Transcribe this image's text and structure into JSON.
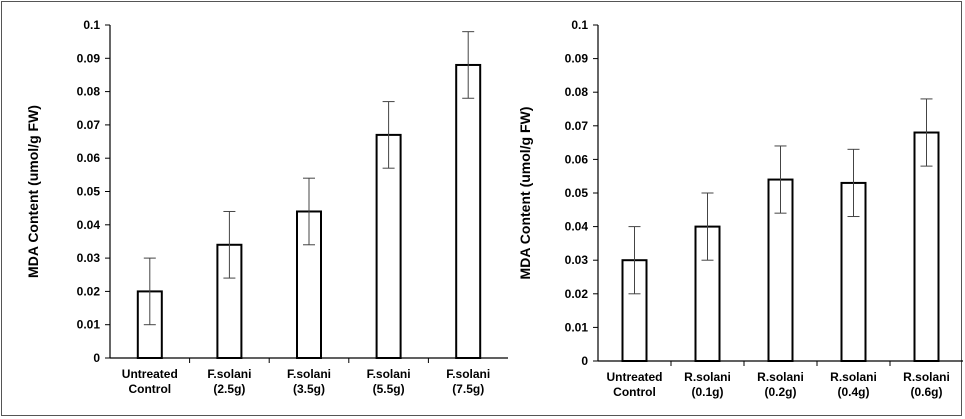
{
  "chart_data": [
    {
      "type": "bar",
      "ylabel": "MDA Content  (umol/g FW)",
      "ylim": [
        0,
        0.1
      ],
      "yticks": [
        "0",
        "0.01",
        "0.02",
        "0.03",
        "0.04",
        "0.05",
        "0.06",
        "0.07",
        "0.08",
        "0.09",
        "0.1"
      ],
      "categories": [
        [
          "Untreated",
          "Control"
        ],
        [
          "F.solani",
          "(2.5g)"
        ],
        [
          "F.solani",
          "(3.5g)"
        ],
        [
          "F.solani",
          "(5.5g)"
        ],
        [
          "F.solani",
          "(7.5g)"
        ]
      ],
      "values": [
        0.02,
        0.034,
        0.044,
        0.067,
        0.088
      ],
      "errors": [
        0.01,
        0.01,
        0.01,
        0.01,
        0.01
      ],
      "bar_color": "#ffffff",
      "edge_color": "#000000",
      "grid": false
    },
    {
      "type": "bar",
      "ylabel": "MDA Content  (umol/g FW)",
      "ylim": [
        0,
        0.1
      ],
      "yticks": [
        "0",
        "0.01",
        "0.02",
        "0.03",
        "0.04",
        "0.05",
        "0.06",
        "0.07",
        "0.08",
        "0.09",
        "0.1"
      ],
      "categories": [
        [
          "Untreated",
          "Control"
        ],
        [
          "R.solani",
          "(0.1g)"
        ],
        [
          "R.solani",
          "(0.2g)"
        ],
        [
          "R.solani",
          "(0.4g)"
        ],
        [
          "R.solani",
          "(0.6g)"
        ]
      ],
      "values": [
        0.03,
        0.04,
        0.054,
        0.053,
        0.068
      ],
      "errors": [
        0.01,
        0.01,
        0.01,
        0.01,
        0.01
      ],
      "bar_color": "#ffffff",
      "edge_color": "#000000",
      "grid": false
    }
  ]
}
